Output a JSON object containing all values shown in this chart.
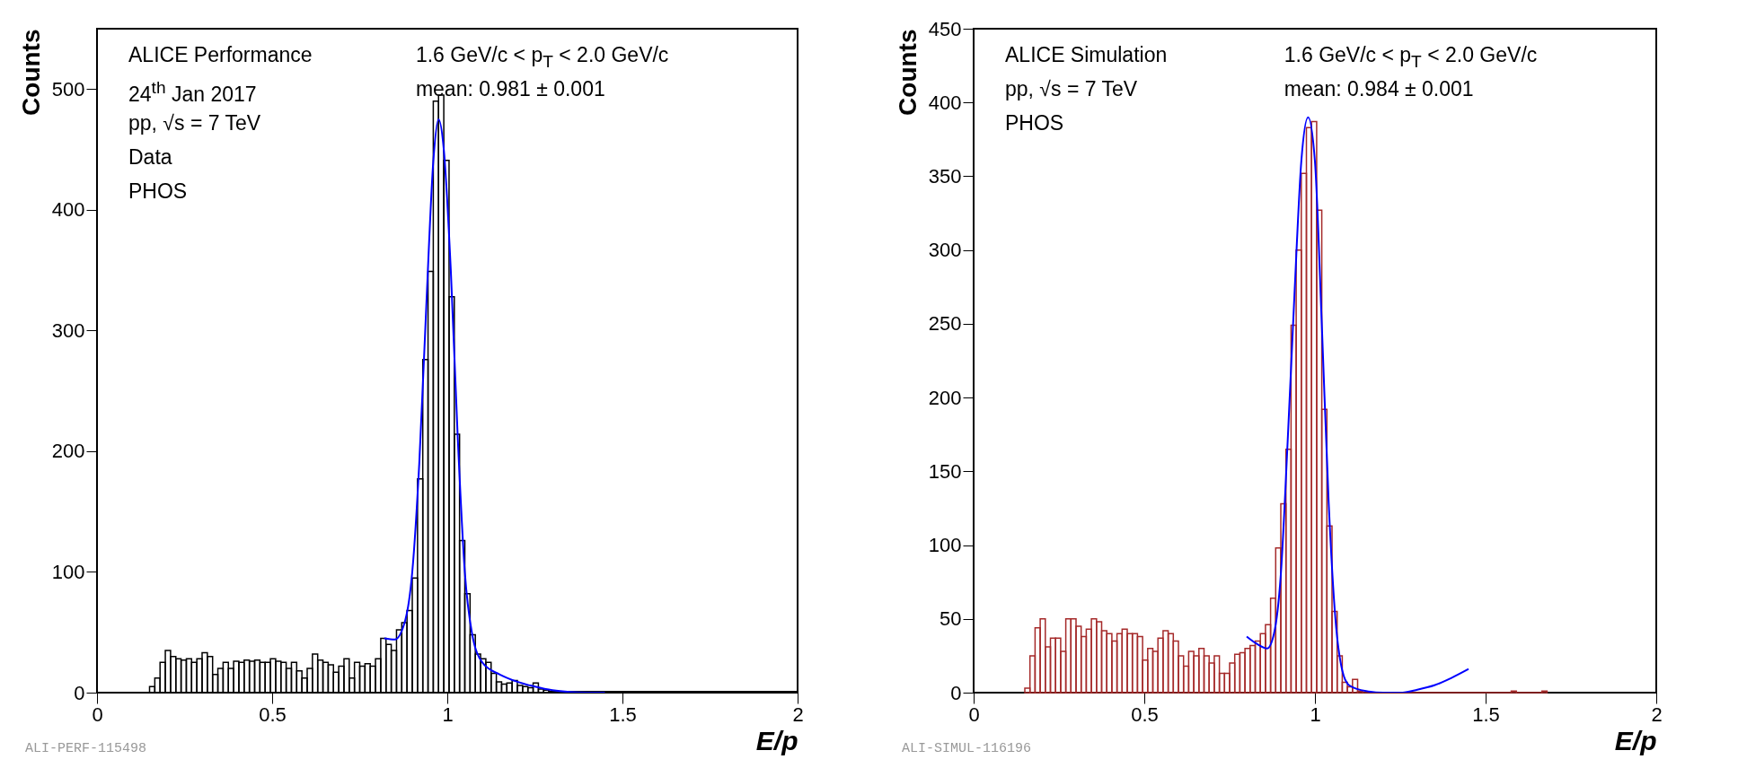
{
  "chart_data": [
    {
      "type": "histogram",
      "xlabel": "E/p",
      "ylabel": "Counts",
      "xlim": [
        0,
        2
      ],
      "xticks": [
        0,
        0.5,
        1,
        1.5,
        2
      ],
      "ylim": [
        0,
        550
      ],
      "yticks": [
        0,
        100,
        200,
        300,
        400,
        500
      ],
      "grid": false,
      "bins": [
        0.15,
        0.165,
        0.18,
        0.195,
        0.21,
        0.225,
        0.24,
        0.255,
        0.27,
        0.285,
        0.3,
        0.315,
        0.33,
        0.345,
        0.36,
        0.375,
        0.39,
        0.405,
        0.42,
        0.435,
        0.45,
        0.465,
        0.48,
        0.495,
        0.51,
        0.525,
        0.54,
        0.555,
        0.57,
        0.585,
        0.6,
        0.615,
        0.63,
        0.645,
        0.66,
        0.675,
        0.69,
        0.705,
        0.72,
        0.735,
        0.75,
        0.765,
        0.78,
        0.795,
        0.81,
        0.825,
        0.84,
        0.855,
        0.87,
        0.885,
        0.9,
        0.915,
        0.93,
        0.945,
        0.96,
        0.975,
        0.99,
        1.005,
        1.02,
        1.035,
        1.05,
        1.065,
        1.08,
        1.095,
        1.11,
        1.125,
        1.14,
        1.155,
        1.17,
        1.185,
        1.2,
        1.215,
        1.23,
        1.245,
        1.26,
        1.275,
        1.29,
        1.5,
        1.75,
        2.0
      ],
      "series": [
        {
          "type": "histogram",
          "color": "#000000",
          "values": [
            5,
            12,
            25,
            35,
            30,
            28,
            27,
            28,
            25,
            28,
            33,
            30,
            15,
            20,
            25,
            20,
            26,
            25,
            27,
            26,
            27,
            25,
            25,
            28,
            26,
            25,
            20,
            25,
            18,
            12,
            20,
            32,
            27,
            25,
            23,
            17,
            22,
            28,
            12,
            25,
            22,
            24,
            22,
            28,
            45,
            40,
            35,
            52,
            58,
            68,
            95,
            177,
            276,
            349,
            490,
            495,
            441,
            328,
            214,
            126,
            82,
            48,
            32,
            28,
            25,
            16,
            9,
            7,
            8,
            10,
            6,
            5,
            4,
            8,
            3,
            2,
            1,
            1,
            1
          ]
        },
        {
          "type": "line",
          "color": "#0000ff",
          "x": [
            0.82,
            0.85,
            0.88,
            0.9,
            0.92,
            0.94,
            0.96,
            0.975,
            0.99,
            1.01,
            1.03,
            1.05,
            1.07,
            1.1,
            1.15,
            1.2,
            1.25,
            1.3,
            1.35,
            1.4,
            1.45
          ],
          "values": [
            45,
            44,
            60,
            100,
            190,
            320,
            440,
            475,
            450,
            350,
            210,
            100,
            50,
            25,
            15,
            9,
            5,
            2,
            0.5,
            0,
            0
          ]
        }
      ],
      "annotations": [
        "ALICE Performance",
        "24$^{th}$ Jan 2017",
        "pp, √s = 7 TeV",
        "Data",
        "PHOS",
        "1.6 GeV/c < p$_{T}$ < 2.0 GeV/c",
        "mean: 0.981 ± 0.001",
        "ALI-PERF-115498"
      ]
    },
    {
      "type": "histogram",
      "xlabel": "E/p",
      "ylabel": "Counts",
      "xlim": [
        0,
        2
      ],
      "xticks": [
        0,
        0.5,
        1,
        1.5,
        2
      ],
      "ylim": [
        0,
        450
      ],
      "yticks": [
        0,
        50,
        100,
        150,
        200,
        250,
        300,
        350,
        400,
        450
      ],
      "grid": false,
      "bins": [
        0.15,
        0.165,
        0.18,
        0.195,
        0.21,
        0.225,
        0.24,
        0.255,
        0.27,
        0.285,
        0.3,
        0.315,
        0.33,
        0.345,
        0.36,
        0.375,
        0.39,
        0.405,
        0.42,
        0.435,
        0.45,
        0.465,
        0.48,
        0.495,
        0.51,
        0.525,
        0.54,
        0.555,
        0.57,
        0.585,
        0.6,
        0.615,
        0.63,
        0.645,
        0.66,
        0.675,
        0.69,
        0.705,
        0.72,
        0.735,
        0.75,
        0.765,
        0.78,
        0.795,
        0.81,
        0.825,
        0.84,
        0.855,
        0.87,
        0.885,
        0.9,
        0.915,
        0.93,
        0.945,
        0.96,
        0.975,
        0.99,
        1.005,
        1.02,
        1.035,
        1.05,
        1.065,
        1.08,
        1.095,
        1.11,
        1.125,
        1.14,
        1.575,
        1.59,
        1.665,
        1.68
      ],
      "series": [
        {
          "type": "histogram",
          "color": "#a52a2a",
          "values": [
            3,
            25,
            44,
            50,
            31,
            37,
            37,
            28,
            50,
            50,
            45,
            38,
            43,
            50,
            48,
            42,
            40,
            35,
            40,
            43,
            40,
            40,
            38,
            22,
            30,
            28,
            37,
            42,
            40,
            35,
            25,
            18,
            28,
            25,
            30,
            25,
            20,
            25,
            13,
            13,
            20,
            26,
            27,
            30,
            32,
            35,
            40,
            46,
            64,
            98,
            128,
            165,
            249,
            300,
            352,
            383,
            387,
            327,
            192,
            113,
            55,
            25,
            7,
            4,
            9,
            1,
            0,
            1,
            0,
            1
          ]
        },
        {
          "type": "line",
          "color": "#0000ff",
          "x": [
            0.8,
            0.83,
            0.86,
            0.88,
            0.9,
            0.92,
            0.94,
            0.96,
            0.98,
            1.0,
            1.02,
            1.04,
            1.06,
            1.08,
            1.1,
            1.15,
            1.2,
            1.25,
            1.3,
            1.35,
            1.4,
            1.45
          ],
          "values": [
            38,
            33,
            30,
            40,
            80,
            170,
            270,
            360,
            390,
            360,
            250,
            130,
            50,
            15,
            5,
            1,
            0,
            0,
            2,
            5,
            10,
            16
          ]
        }
      ],
      "annotations": [
        "ALICE Simulation",
        "pp, √s = 7 TeV",
        "PHOS",
        "1.6 GeV/c < p$_{T}$ < 2.0 GeV/c",
        "mean: 0.984 ± 0.001",
        "ALI-SIMUL-116196"
      ]
    }
  ]
}
